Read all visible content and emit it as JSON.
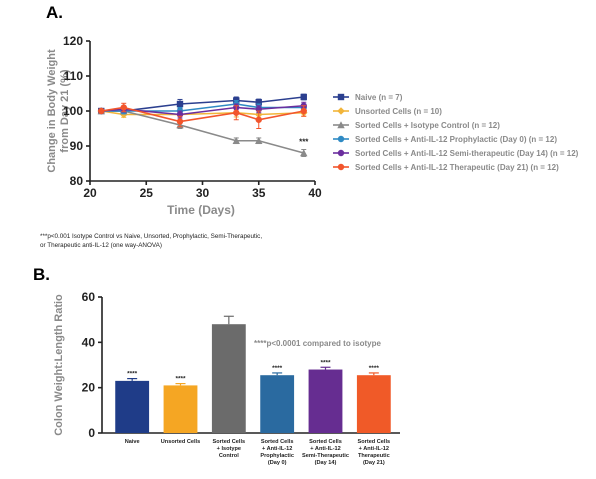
{
  "chart_data": [
    {
      "panel": "A.",
      "type": "line",
      "xlabel": "Time (Days)",
      "ylabel_lines": [
        "Change in Body Weight",
        "from Day 21 (%)"
      ],
      "xlim": [
        20,
        40
      ],
      "ylim": [
        80,
        120
      ],
      "xticks": [
        20,
        25,
        30,
        35,
        40
      ],
      "yticks": [
        80,
        90,
        100,
        110,
        120
      ],
      "x": [
        21,
        23,
        28,
        33,
        35,
        39
      ],
      "series": [
        {
          "name": "Naive (n = 7)",
          "color": "#2b3f8f",
          "marker": "square",
          "values": [
            100,
            100,
            102,
            103,
            102.5,
            104
          ],
          "err": [
            0.5,
            0.8,
            1.3,
            1.0,
            0.9,
            0.8
          ]
        },
        {
          "name": "Unsorted Cells (n = 10)",
          "color": "#f2b53a",
          "marker": "diamond",
          "values": [
            100,
            99,
            99,
            99.5,
            99,
            99.5
          ],
          "err": [
            0.5,
            0.8,
            1.0,
            1.2,
            1.0,
            1.0
          ]
        },
        {
          "name": "Sorted Cells + Isotype Control (n = 12)",
          "color": "#8a8a8a",
          "marker": "triangle",
          "values": [
            100,
            100,
            96,
            91.5,
            91.5,
            88
          ],
          "err": [
            0.5,
            0.8,
            1.0,
            0.8,
            0.8,
            1.0
          ]
        },
        {
          "name": "Sorted Cells + Anti-IL-12 Prophylactic (Day 0) (n = 12)",
          "color": "#2f8ac4",
          "marker": "circle",
          "values": [
            100,
            100,
            100,
            102,
            101,
            101
          ],
          "err": [
            0.5,
            0.8,
            1.0,
            1.0,
            1.0,
            1.0
          ]
        },
        {
          "name": "Sorted Cells + Anti-IL-12 Semi-therapeutic (Day 14) (n = 12)",
          "color": "#6b2e9e",
          "marker": "circle",
          "values": [
            100,
            100.5,
            99,
            101,
            100.5,
            101.5
          ],
          "err": [
            0.5,
            0.8,
            1.0,
            1.0,
            1.0,
            1.0
          ]
        },
        {
          "name": "Sorted Cells + Anti-IL-12 Therapeutic (Day 21) (n = 12)",
          "color": "#f2552c",
          "marker": "circle",
          "values": [
            100,
            101,
            97,
            99.5,
            97.5,
            100
          ],
          "err": [
            0.5,
            1.2,
            1.5,
            2.0,
            2.5,
            1.5
          ]
        }
      ],
      "annotations": [
        {
          "text": "***",
          "x": 39,
          "y": 90.5
        }
      ],
      "footnote": [
        "***p<0.001 Isotype Control vs Naive, Unsorted, Prophylactic, Semi-Therapeutic,",
        "or Therapeutic anti-IL-12 (one way-ANOVA)"
      ]
    },
    {
      "panel": "B.",
      "type": "bar",
      "ylabel": "Colon Weight:Length Ratio",
      "ylim": [
        0,
        60
      ],
      "yticks": [
        0,
        20,
        40,
        60
      ],
      "categories": [
        [
          "Naive"
        ],
        [
          "Unsorted Cells"
        ],
        [
          "Sorted Cells",
          "+ Isotype",
          "Control"
        ],
        [
          "Sorted Cells",
          "+ Anti-IL-12",
          "Prophylactic",
          "(Day 0)"
        ],
        [
          "Sorted Cells",
          "+ Anti-IL-12",
          "Semi-Therapeutic",
          "(Day 14)"
        ],
        [
          "Sorted Cells",
          "+ Anti-IL-12",
          "Therapeutic",
          "(Day 21)"
        ]
      ],
      "values": [
        23,
        21,
        48,
        25.5,
        28,
        25.5
      ],
      "err": [
        1.0,
        0.8,
        3.5,
        1.0,
        1.0,
        1.0
      ],
      "colors": [
        "#1f3c88",
        "#f5a623",
        "#6b6b6b",
        "#2a6aa0",
        "#662d91",
        "#f05a28"
      ],
      "significance": [
        "****",
        "****",
        "",
        "****",
        "****",
        "****"
      ],
      "annotation": "****p<0.0001 compared to isotype"
    }
  ]
}
